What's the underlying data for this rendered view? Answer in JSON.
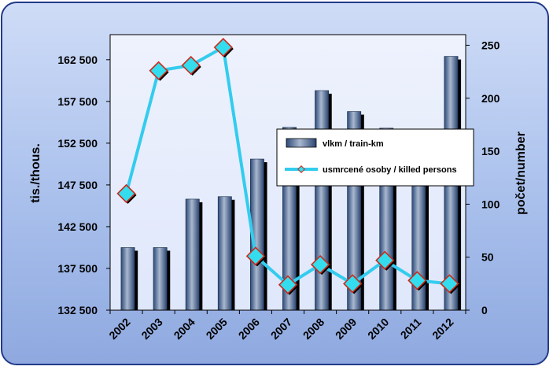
{
  "chart_data": {
    "type": "bar",
    "categories": [
      "2002",
      "2003",
      "2004",
      "2005",
      "2006",
      "2007",
      "2008",
      "2009",
      "2010",
      "2011",
      "2012"
    ],
    "series": [
      {
        "name": "vlkm / train-km",
        "type": "bar",
        "axis": "left",
        "values": [
          140000,
          140000,
          145800,
          146100,
          150600,
          154400,
          158800,
          156300,
          154300,
          153300,
          162900
        ],
        "color": "#2f4e7a"
      },
      {
        "name": "usmrcené osoby / killed persons",
        "type": "line",
        "axis": "right",
        "values": [
          110,
          226,
          231,
          248,
          51,
          24,
          43,
          25,
          47,
          28,
          25
        ],
        "color": "#33ccee",
        "marker_color": "#33ddee",
        "marker_edge": "#cc2a1a"
      }
    ],
    "y_left": {
      "label": "tis./thous.",
      "ylim": [
        132500,
        165500
      ],
      "ticks": [
        132500,
        137500,
        142500,
        147500,
        152500,
        157500,
        162500
      ],
      "tick_labels": [
        "132 500",
        "137 500",
        "142 500",
        "147 500",
        "152 500",
        "157 500",
        "162 500"
      ]
    },
    "y_right": {
      "label": "počet/number",
      "ylim": [
        0,
        260
      ],
      "ticks": [
        0,
        50,
        100,
        150,
        200,
        250
      ],
      "tick_labels": [
        "0",
        "50",
        "100",
        "150",
        "200",
        "250"
      ]
    },
    "grid": false,
    "legend_placement": "center-right",
    "plot_background": "#e8eefc"
  }
}
